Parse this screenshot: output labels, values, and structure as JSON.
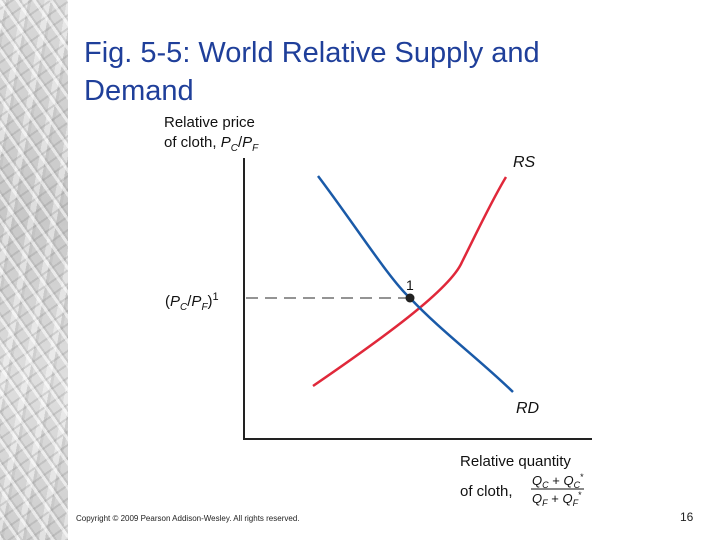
{
  "title": {
    "line1": "Fig. 5-5: World Relative Supply and",
    "line2": "Demand"
  },
  "axes": {
    "y_label_line1": "Relative price",
    "y_label_line2_prefix": "of cloth, ",
    "y_label_sym_p1": "P",
    "y_label_sub_c": "C",
    "y_label_slash": "/",
    "y_label_sym_p2": "P",
    "y_label_sub_f": "F",
    "x_label_line1": "Relative quantity",
    "x_label_line2_prefix": "of cloth,",
    "x_frac_num_q1": "Q",
    "x_frac_num_sub1": "C",
    "x_frac_num_plus": " + ",
    "x_frac_num_q2": "Q",
    "x_frac_num_sub2": "C",
    "x_frac_num_star": "*",
    "x_frac_den_q1": "Q",
    "x_frac_den_sub1": "F",
    "x_frac_den_plus": " + ",
    "x_frac_den_q2": "Q",
    "x_frac_den_sub2": "F",
    "x_frac_den_star": "*"
  },
  "curves": {
    "supply_label": "RS",
    "demand_label": "RD",
    "supply_color": "#e0283a",
    "demand_color": "#1a5aa8"
  },
  "equilibrium": {
    "point_label": "1",
    "price_label_open": "(",
    "price_label_p1": "P",
    "price_label_sub_c": "C",
    "price_label_slash": "/",
    "price_label_p2": "P",
    "price_label_sub_f": "F",
    "price_label_close": ")",
    "price_label_sup": "1"
  },
  "footer": {
    "copyright": "Copyright © 2009 Pearson Addison-Wesley. All rights reserved.",
    "page_number": "16"
  },
  "colors": {
    "title": "#1f3f9a",
    "axis": "#222222",
    "guide": "#555555"
  }
}
